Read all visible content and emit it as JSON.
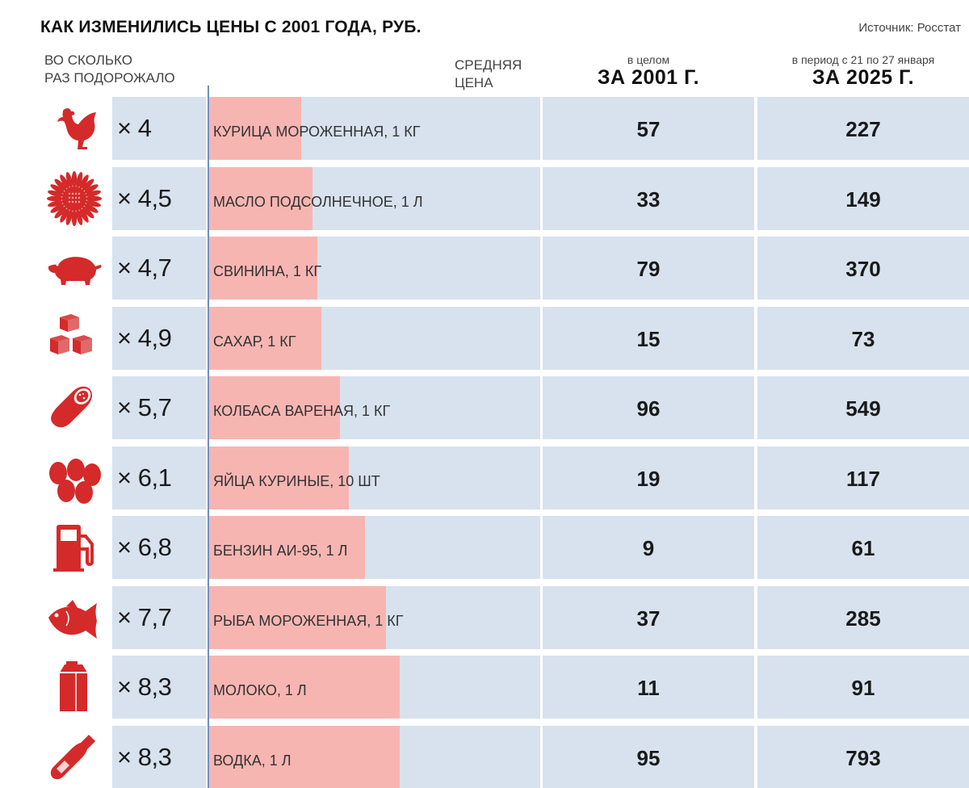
{
  "title": "КАК ИЗМЕНИЛИСЬ ЦЕНЫ С 2001 ГОДА, РУБ.",
  "source": "Источник: Росстат",
  "headers": {
    "ratio_line1": "ВО СКОЛЬКО",
    "ratio_line2": "РАЗ ПОДОРОЖАЛО",
    "avg_line1": "СРЕДНЯЯ",
    "avg_line2": "ЦЕНА",
    "col2001_small": "в целом",
    "col2001_big": "ЗА 2001 Г.",
    "col2025_small": "в период с 21 по 27 января",
    "col2025_big": "ЗА 2025 Г."
  },
  "colors": {
    "icon": "#d42a2a",
    "bar": "#f7b5b2",
    "cell": "#d7e2ee",
    "axis": "#6f8fc2"
  },
  "chart_data": {
    "type": "bar",
    "categories": [
      "КУРИЦА МОРОЖЕННАЯ, 1 КГ",
      "МАСЛО ПОДСОЛНЕЧНОЕ, 1 Л",
      "СВИНИНА, 1 КГ",
      "САХАР, 1 КГ",
      "КОЛБАСА ВАРЕНАЯ, 1 КГ",
      "ЯЙЦА КУРИНЫЕ, 10 ШТ",
      "БЕНЗИН АИ-95, 1 Л",
      "РЫБА МОРОЖЕННАЯ, 1 КГ",
      "МОЛОКО, 1 Л",
      "ВОДКА, 1 Л"
    ],
    "values": [
      4,
      4.5,
      4.7,
      4.9,
      5.7,
      6.1,
      6.8,
      7.7,
      8.3,
      8.3
    ],
    "xlim": [
      0,
      8.3
    ]
  },
  "rows": [
    {
      "icon": "chicken-icon",
      "ratio": "× 4",
      "ratio_value": 4,
      "label": "КУРИЦА МОРОЖЕННАЯ, 1 КГ",
      "price_2001": "57",
      "price_2025": "227"
    },
    {
      "icon": "sunflower-icon",
      "ratio": "× 4,5",
      "ratio_value": 4.5,
      "label": "МАСЛО ПОДСОЛНЕЧНОЕ, 1 Л",
      "price_2001": "33",
      "price_2025": "149"
    },
    {
      "icon": "pig-icon",
      "ratio": "× 4,7",
      "ratio_value": 4.7,
      "label": "СВИНИНА, 1 КГ",
      "price_2001": "79",
      "price_2025": "370"
    },
    {
      "icon": "sugar-cubes-icon",
      "ratio": "× 4,9",
      "ratio_value": 4.9,
      "label": "САХАР, 1 КГ",
      "price_2001": "15",
      "price_2025": "73"
    },
    {
      "icon": "sausage-icon",
      "ratio": "× 5,7",
      "ratio_value": 5.7,
      "label": "КОЛБАСА ВАРЕНАЯ, 1 КГ",
      "price_2001": "96",
      "price_2025": "549"
    },
    {
      "icon": "eggs-icon",
      "ratio": "× 6,1",
      "ratio_value": 6.1,
      "label": "ЯЙЦА КУРИНЫЕ, 10 ШТ",
      "price_2001": "19",
      "price_2025": "117"
    },
    {
      "icon": "fuel-pump-icon",
      "ratio": "× 6,8",
      "ratio_value": 6.8,
      "label": "БЕНЗИН АИ-95, 1 Л",
      "price_2001": "9",
      "price_2025": "61"
    },
    {
      "icon": "fish-icon",
      "ratio": "× 7,7",
      "ratio_value": 7.7,
      "label": "РЫБА МОРОЖЕННАЯ, 1 КГ",
      "price_2001": "37",
      "price_2025": "285"
    },
    {
      "icon": "milk-carton-icon",
      "ratio": "× 8,3",
      "ratio_value": 8.3,
      "label": "МОЛОКО, 1 Л",
      "price_2001": "11",
      "price_2025": "91"
    },
    {
      "icon": "bottle-icon",
      "ratio": "× 8,3",
      "ratio_value": 8.3,
      "label": "ВОДКА, 1 Л",
      "price_2001": "95",
      "price_2025": "793"
    }
  ]
}
